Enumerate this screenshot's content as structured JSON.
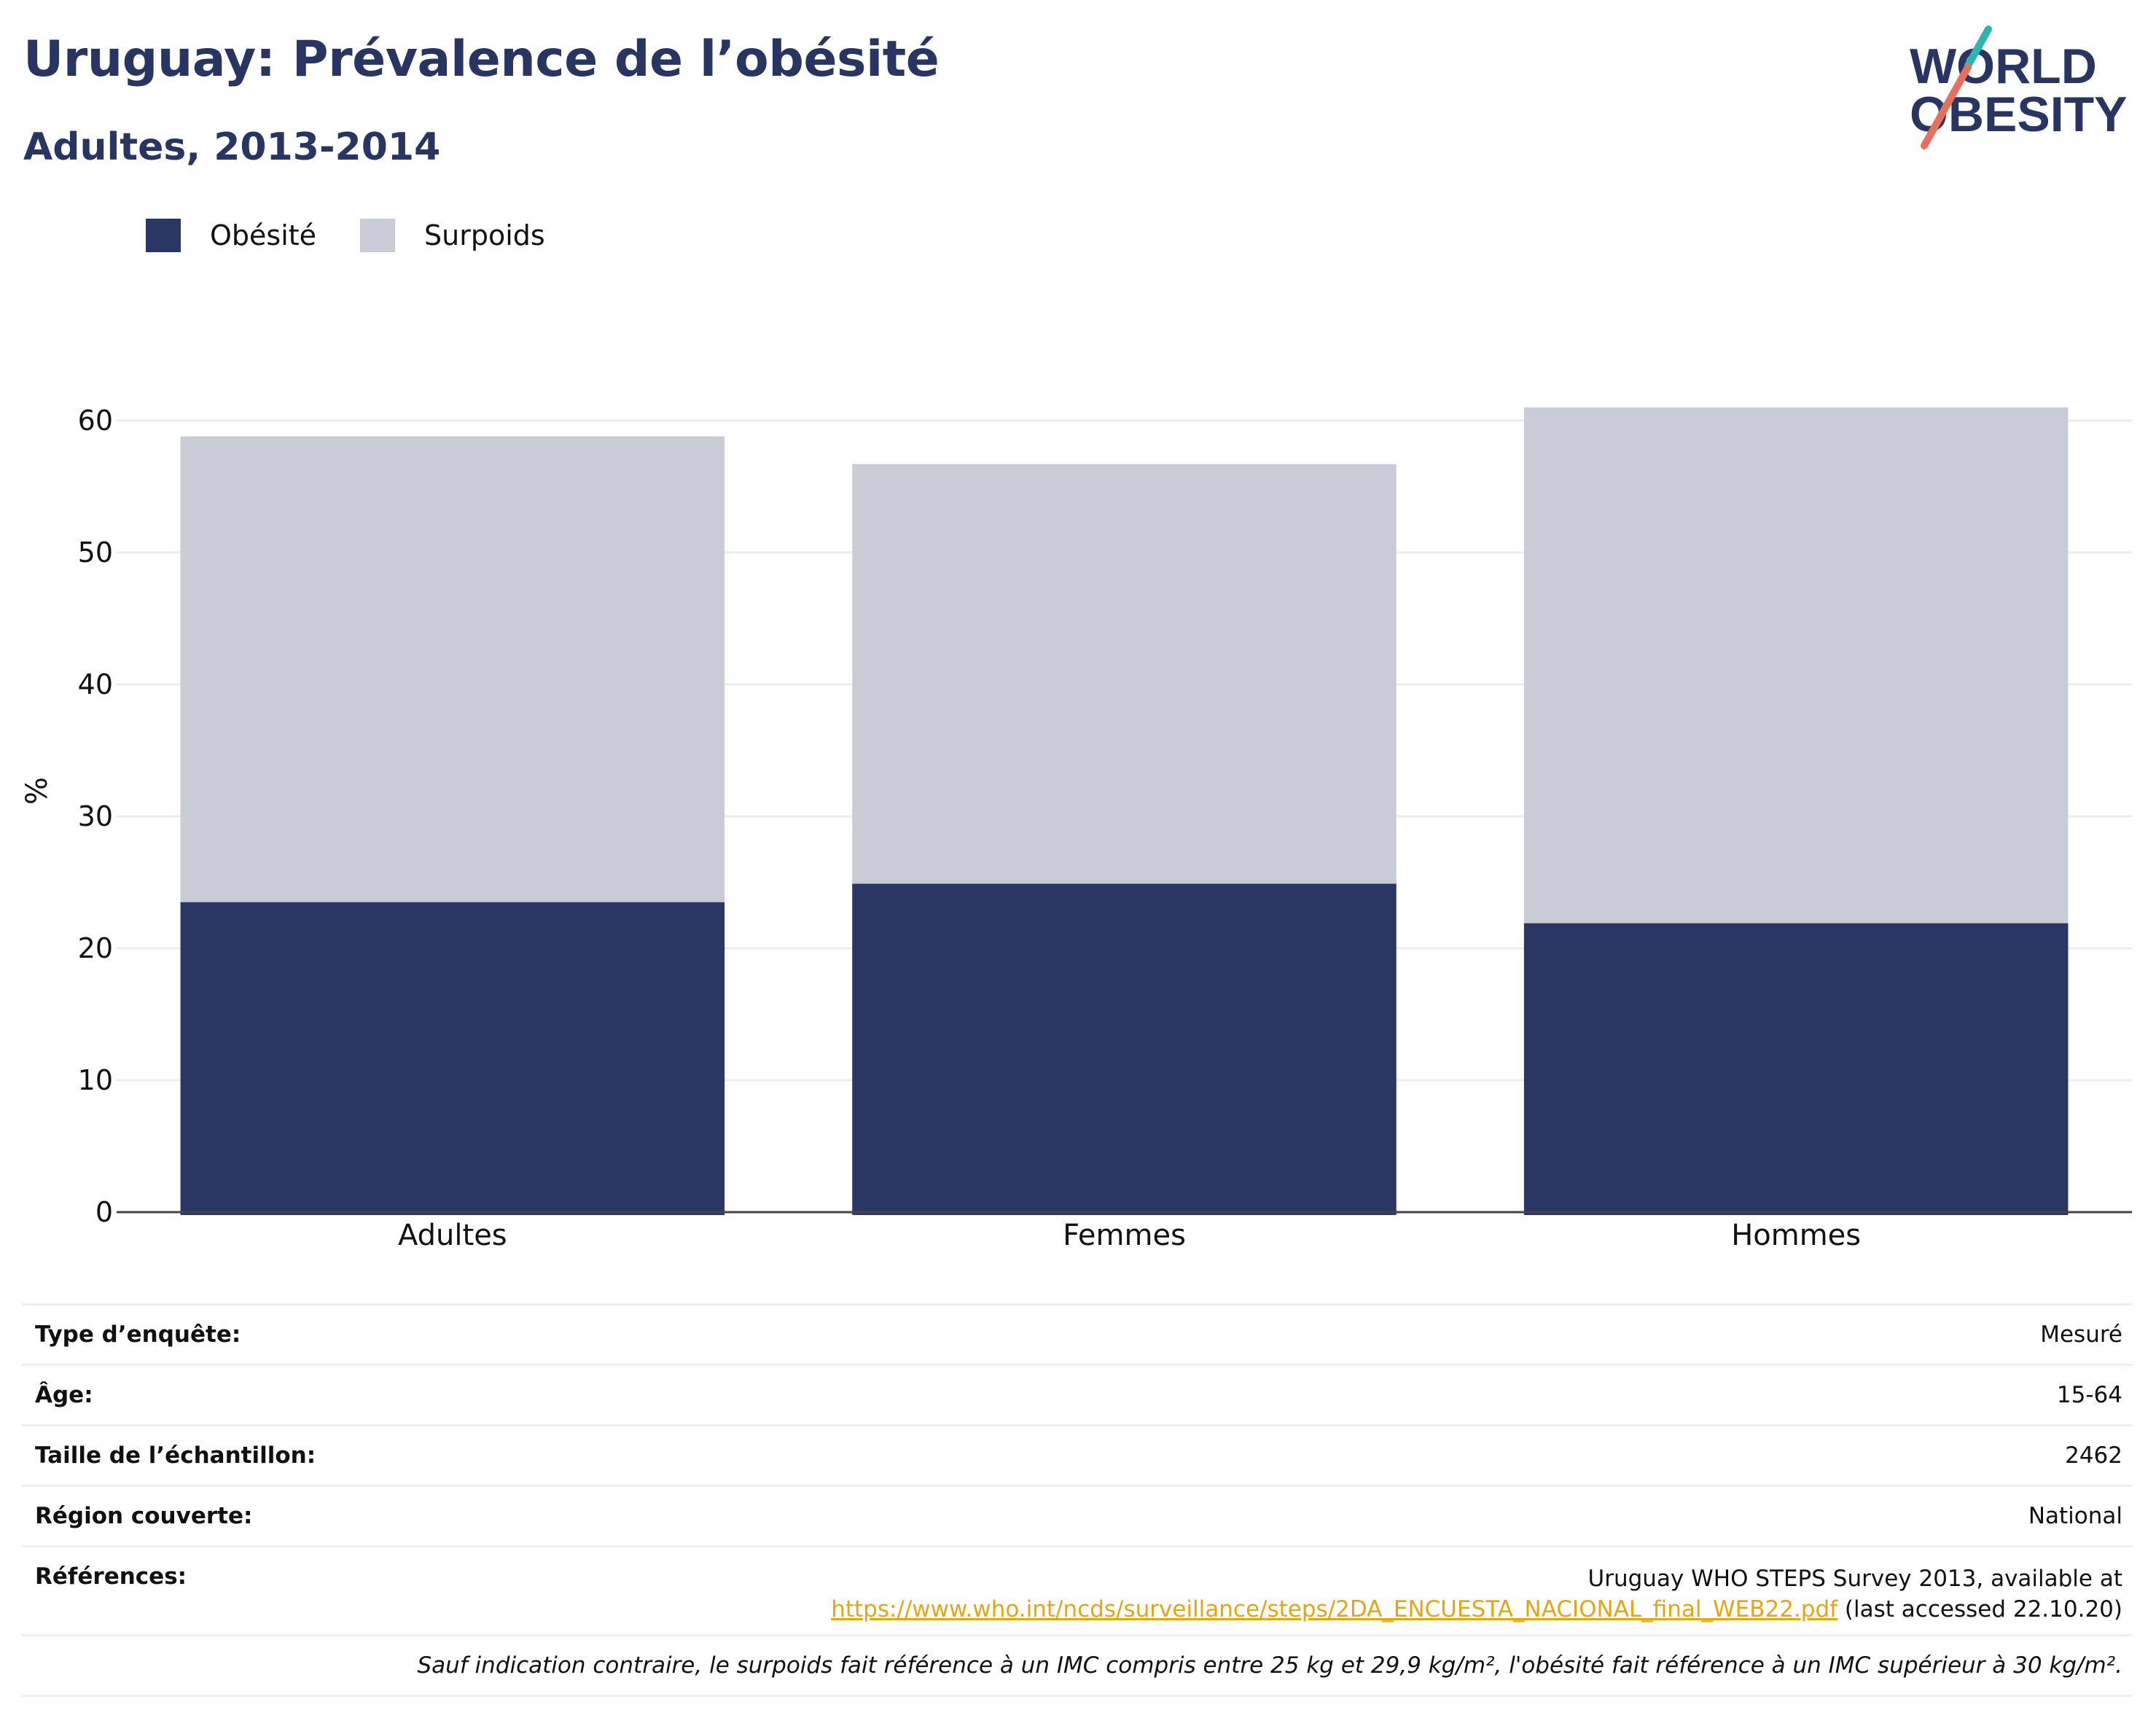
{
  "title": "Uruguay: Prévalence de l’obésité",
  "subtitle": "Adultes, 2013-2014",
  "logo": {
    "line1": "WORLD",
    "line2": "OBESITY"
  },
  "colors": {
    "navy": "#2a3663",
    "grey": "#c9cbd7",
    "teal": "#2bb5b0",
    "coral": "#e7705d",
    "link": "#e5a611"
  },
  "chart_data": {
    "type": "bar",
    "stacked": true,
    "categories": [
      "Adultes",
      "Femmes",
      "Hommes"
    ],
    "series": [
      {
        "name": "Obésité",
        "values": [
          23.5,
          24.9,
          21.9
        ],
        "color": "#2a3663"
      },
      {
        "name": "Surpoids",
        "values": [
          35.3,
          31.8,
          39.1
        ],
        "color": "#c9cbd7"
      }
    ],
    "ylabel": "%",
    "xlabel": "",
    "ylim": [
      0,
      65
    ],
    "yticks": [
      0,
      10,
      20,
      30,
      40,
      50,
      60
    ],
    "grid": true,
    "legend": "top-left"
  },
  "info": {
    "survey_type_label": "Type d’enquête:",
    "survey_type_value": "Mesuré",
    "age_label": "Âge:",
    "age_value": "15-64",
    "sample_label": "Taille de l’échantillon:",
    "sample_value": "2462",
    "region_label": "Région couverte:",
    "region_value": "National",
    "refs_label": "Références:",
    "refs_line1": "Uruguay WHO STEPS Survey 2013, available at",
    "refs_link": "https://www.who.int/ncds/surveillance/steps/2DA_ENCUESTA_NACIONAL_final_WEB22.pdf",
    "refs_suffix": " (last accessed 22.10.20)",
    "note": "Sauf indication contraire, le surpoids fait référence à un IMC compris entre 25 kg et 29,9 kg/m², l'obésité fait référence à un IMC supérieur à 30 kg/m²."
  }
}
